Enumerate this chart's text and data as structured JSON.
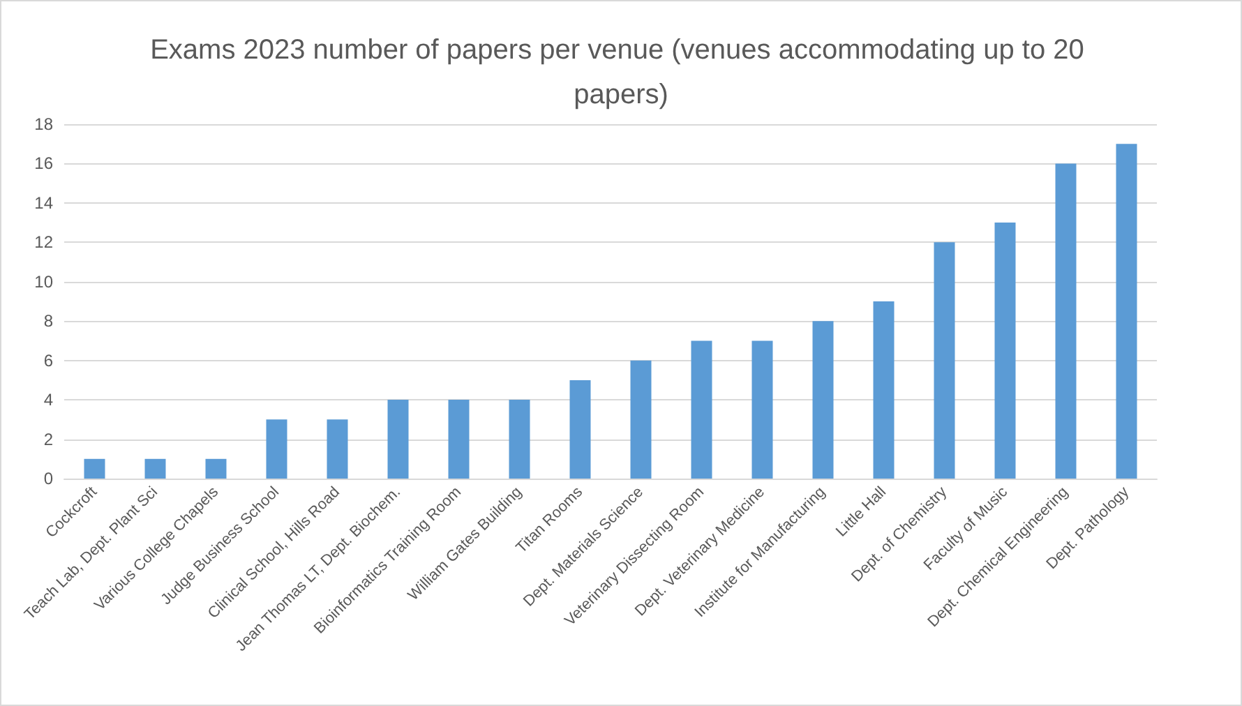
{
  "chart_data": {
    "type": "bar",
    "title": "Exams 2023 number of papers per venue (venues accommodating up to 20 papers)",
    "categories": [
      "Cockcroft",
      "Teach Lab, Dept. Plant Sci",
      "Various College Chapels",
      "Judge Business School",
      "Clinical School, Hills Road",
      "Jean Thomas LT, Dept. Biochem.",
      "Bioinformatics Training Room",
      "William Gates Building",
      "Titan Rooms",
      "Dept. Materials Science",
      "Veterinary Dissecting Room",
      "Dept. Veterinary Medicine",
      "Institute for Manufacturing",
      "Little Hall",
      "Dept. of Chemistry",
      "Faculty of Music",
      "Dept. Chemical Engineering",
      "Dept. Pathology"
    ],
    "values": [
      1,
      1,
      1,
      3,
      3,
      4,
      4,
      4,
      5,
      6,
      7,
      7,
      8,
      9,
      12,
      13,
      16,
      17
    ],
    "color": "#5b9bd5",
    "ylim": [
      0,
      18
    ],
    "yticks": [
      0,
      2,
      4,
      6,
      8,
      10,
      12,
      14,
      16,
      18
    ],
    "grid": "y"
  }
}
